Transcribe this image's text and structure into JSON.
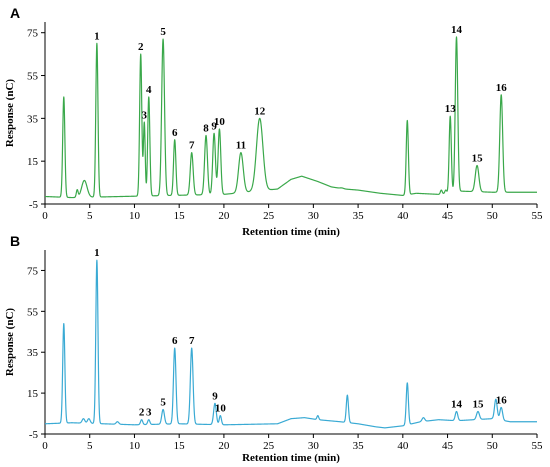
{
  "chart_data": [
    {
      "panel": "A",
      "type": "line",
      "xlabel": "Retention time (min)",
      "ylabel": "Response (nC)",
      "xlim": [
        0,
        55
      ],
      "ylim": [
        -5,
        80
      ],
      "xticks": [
        0,
        5,
        10,
        15,
        20,
        25,
        30,
        35,
        40,
        45,
        50,
        55
      ],
      "yticks": [
        -5,
        15,
        35,
        55,
        75
      ],
      "color": "#3aa84a",
      "baseline": [
        [
          0,
          -1.5
        ],
        [
          3,
          -2
        ],
        [
          14,
          -1
        ],
        [
          20,
          -0.5
        ],
        [
          26,
          2
        ],
        [
          27.5,
          6.5
        ],
        [
          28.7,
          8
        ],
        [
          30.5,
          5.5
        ],
        [
          32,
          3
        ],
        [
          33.5,
          2
        ],
        [
          35,
          1.5
        ],
        [
          37.5,
          0
        ],
        [
          40,
          -1
        ],
        [
          41.5,
          0
        ],
        [
          44,
          -0.5
        ],
        [
          46.5,
          1
        ],
        [
          50,
          0.5
        ],
        [
          52.5,
          0.5
        ],
        [
          55,
          0.5
        ]
      ],
      "peaks": [
        {
          "x": 2.1,
          "y": 45,
          "w": 0.12
        },
        {
          "x": 3.6,
          "y": 1.5,
          "w": 0.1
        },
        {
          "x": 4.4,
          "y": 6,
          "w": 0.3
        },
        {
          "label": "1",
          "x": 5.8,
          "y": 70,
          "w": 0.12
        },
        {
          "label": "2",
          "x": 10.7,
          "y": 65,
          "w": 0.12
        },
        {
          "label": "3",
          "x": 11.1,
          "y": 33,
          "w": 0.1
        },
        {
          "label": "4",
          "x": 11.6,
          "y": 45,
          "w": 0.12
        },
        {
          "label": "5",
          "x": 13.2,
          "y": 72,
          "w": 0.16
        },
        {
          "label": "6",
          "x": 14.5,
          "y": 25,
          "w": 0.13
        },
        {
          "label": "7",
          "x": 16.4,
          "y": 19,
          "w": 0.16
        },
        {
          "label": "8",
          "x": 18.0,
          "y": 27,
          "w": 0.16
        },
        {
          "label": "9",
          "x": 18.9,
          "y": 28,
          "w": 0.15
        },
        {
          "label": "10",
          "x": 19.5,
          "y": 30,
          "w": 0.15
        },
        {
          "label": "11",
          "x": 21.9,
          "y": 19,
          "w": 0.26
        },
        {
          "label": "12",
          "x": 24.0,
          "y": 35,
          "w": 0.36
        },
        {
          "x": 33.2,
          "y": 2.5,
          "w": 0.2
        },
        {
          "x": 40.5,
          "y": 34,
          "w": 0.12
        },
        {
          "x": 44.3,
          "y": 1.5,
          "w": 0.1
        },
        {
          "x": 44.8,
          "y": 1.5,
          "w": 0.1
        },
        {
          "label": "13",
          "x": 45.3,
          "y": 36,
          "w": 0.12
        },
        {
          "label": "14",
          "x": 46.0,
          "y": 73,
          "w": 0.14
        },
        {
          "label": "15",
          "x": 48.3,
          "y": 13,
          "w": 0.2
        },
        {
          "label": "16",
          "x": 51.0,
          "y": 46,
          "w": 0.16
        }
      ]
    },
    {
      "panel": "B",
      "type": "line",
      "xlabel": "Retention time (min)",
      "ylabel": "Response (nC)",
      "xlim": [
        0,
        55
      ],
      "ylim": [
        -5,
        85
      ],
      "xticks": [
        0,
        5,
        10,
        15,
        20,
        25,
        30,
        35,
        40,
        45,
        50,
        55
      ],
      "yticks": [
        -5,
        15,
        35,
        55,
        75
      ],
      "color": "#3aaad4",
      "baseline": [
        [
          0,
          0
        ],
        [
          3,
          0.5
        ],
        [
          6.5,
          0
        ],
        [
          10,
          -0.5
        ],
        [
          15,
          0
        ],
        [
          20,
          -0.5
        ],
        [
          26,
          0
        ],
        [
          27.5,
          2.5
        ],
        [
          29,
          3
        ],
        [
          30.5,
          2
        ],
        [
          33,
          1
        ],
        [
          35,
          0
        ],
        [
          37,
          -1.5
        ],
        [
          38,
          -2
        ],
        [
          40,
          -1
        ],
        [
          42,
          1
        ],
        [
          44,
          2
        ],
        [
          46,
          1.5
        ],
        [
          50,
          2.5
        ],
        [
          52,
          1
        ],
        [
          55,
          1
        ]
      ],
      "peaks": [
        {
          "x": 2.1,
          "y": 49,
          "w": 0.12
        },
        {
          "x": 4.3,
          "y": 2.5,
          "w": 0.15
        },
        {
          "x": 4.9,
          "y": 2.5,
          "w": 0.15
        },
        {
          "label": "1",
          "x": 5.8,
          "y": 80,
          "w": 0.12
        },
        {
          "x": 8.1,
          "y": 1,
          "w": 0.15
        },
        {
          "label": "2",
          "x": 10.8,
          "y": 2,
          "w": 0.12
        },
        {
          "label": "3",
          "x": 11.6,
          "y": 2,
          "w": 0.12
        },
        {
          "label": "5",
          "x": 13.2,
          "y": 7,
          "w": 0.15
        },
        {
          "label": "6",
          "x": 14.5,
          "y": 37,
          "w": 0.14
        },
        {
          "label": "7",
          "x": 16.4,
          "y": 37,
          "w": 0.15
        },
        {
          "label": "9",
          "x": 19.0,
          "y": 10,
          "w": 0.15
        },
        {
          "label": "10",
          "x": 19.6,
          "y": 4,
          "w": 0.12
        },
        {
          "x": 30.5,
          "y": 4,
          "w": 0.1
        },
        {
          "x": 33.8,
          "y": 14,
          "w": 0.12
        },
        {
          "x": 40.5,
          "y": 20,
          "w": 0.12
        },
        {
          "x": 42.3,
          "y": 3,
          "w": 0.15
        },
        {
          "label": "14",
          "x": 46.0,
          "y": 6,
          "w": 0.14
        },
        {
          "label": "15",
          "x": 48.4,
          "y": 6,
          "w": 0.16
        },
        {
          "x": 50.4,
          "y": 12,
          "w": 0.15
        },
        {
          "label": "16",
          "x": 51.0,
          "y": 8,
          "w": 0.15
        }
      ]
    }
  ]
}
